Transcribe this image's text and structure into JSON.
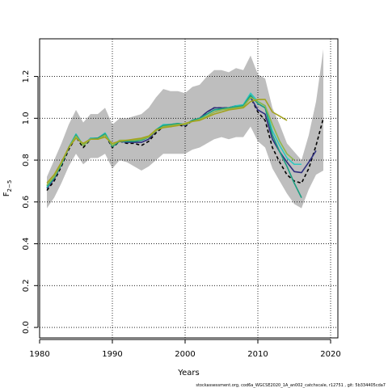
{
  "chart_data": {
    "type": "line",
    "xlabel": "Years",
    "ylabel_main": "F",
    "ylabel_sub": "2−5",
    "xlim": [
      1980,
      2021
    ],
    "ylim": [
      -0.05,
      1.38
    ],
    "xticks": [
      1980,
      1990,
      2000,
      2010,
      2020
    ],
    "yticks": [
      0.0,
      0.2,
      0.4,
      0.6,
      0.8,
      1.0,
      1.2
    ],
    "ytick_labels": [
      "0.0",
      "0.2",
      "0.4",
      "0.6",
      "0.8",
      "1.0",
      "1.2"
    ],
    "grid": true,
    "grid_style": "dotted",
    "band": {
      "color": "#bebebe",
      "x": [
        1981,
        1982,
        1983,
        1984,
        1985,
        1986,
        1987,
        1988,
        1989,
        1990,
        1991,
        1992,
        1993,
        1994,
        1995,
        1996,
        1997,
        1998,
        1999,
        2000,
        2001,
        2002,
        2003,
        2004,
        2005,
        2006,
        2007,
        2008,
        2009,
        2010,
        2011,
        2012,
        2013,
        2014,
        2015,
        2016,
        2017,
        2018,
        2019
      ],
      "upper": [
        0.72,
        0.8,
        0.88,
        0.97,
        1.04,
        0.98,
        1.02,
        1.02,
        1.05,
        0.97,
        1.0,
        1.0,
        1.01,
        1.02,
        1.05,
        1.1,
        1.14,
        1.13,
        1.13,
        1.12,
        1.15,
        1.16,
        1.2,
        1.23,
        1.23,
        1.22,
        1.24,
        1.23,
        1.3,
        1.21,
        1.19,
        1.05,
        0.97,
        0.88,
        0.84,
        0.8,
        0.92,
        1.08,
        1.33
      ],
      "lower": [
        0.57,
        0.62,
        0.69,
        0.77,
        0.83,
        0.78,
        0.81,
        0.81,
        0.83,
        0.76,
        0.8,
        0.79,
        0.77,
        0.75,
        0.77,
        0.8,
        0.83,
        0.83,
        0.83,
        0.83,
        0.85,
        0.86,
        0.88,
        0.9,
        0.91,
        0.9,
        0.91,
        0.91,
        0.96,
        0.89,
        0.86,
        0.76,
        0.7,
        0.64,
        0.59,
        0.57,
        0.66,
        0.73,
        0.75
      ]
    },
    "series": [
      {
        "color": "#000000",
        "dashed": true,
        "width": 1.6,
        "x": [
          1981,
          1982,
          1983,
          1984,
          1985,
          1986,
          1987,
          1988,
          1989,
          1990,
          1991,
          1992,
          1993,
          1994,
          1995,
          1996,
          1997,
          1998,
          1999,
          2000,
          2001,
          2002,
          2003,
          2004,
          2005,
          2006,
          2007,
          2008,
          2009,
          2010,
          2011,
          2012,
          2013,
          2014,
          2015,
          2016,
          2017,
          2018,
          2019
        ],
        "y": [
          0.655,
          0.7,
          0.77,
          0.85,
          0.91,
          0.86,
          0.9,
          0.9,
          0.92,
          0.86,
          0.89,
          0.88,
          0.88,
          0.87,
          0.89,
          0.93,
          0.96,
          0.96,
          0.97,
          0.96,
          0.99,
          1.0,
          1.03,
          1.05,
          1.05,
          1.05,
          1.06,
          1.06,
          1.1,
          1.03,
          0.99,
          0.86,
          0.79,
          0.73,
          0.7,
          0.69,
          0.76,
          0.87,
          1.0
        ]
      },
      {
        "color": "#2e2e7e",
        "dashed": false,
        "width": 1.6,
        "x": [
          1981,
          1982,
          1983,
          1984,
          1985,
          1986,
          1987,
          1988,
          1989,
          1990,
          1991,
          1992,
          1993,
          1994,
          1995,
          1996,
          1997,
          1998,
          1999,
          2000,
          2001,
          2002,
          2003,
          2004,
          2005,
          2006,
          2007,
          2008,
          2009,
          2010,
          2011,
          2012,
          2013,
          2014,
          2015,
          2016,
          2017,
          2018
        ],
        "y": [
          0.665,
          0.71,
          0.78,
          0.86,
          0.92,
          0.87,
          0.905,
          0.905,
          0.925,
          0.865,
          0.89,
          0.885,
          0.885,
          0.885,
          0.9,
          0.94,
          0.965,
          0.965,
          0.975,
          0.965,
          0.99,
          1.0,
          1.03,
          1.05,
          1.05,
          1.05,
          1.06,
          1.06,
          1.1,
          1.04,
          1.02,
          0.9,
          0.84,
          0.79,
          0.745,
          0.74,
          0.79,
          0.845
        ]
      },
      {
        "color": "#2ec8c0",
        "dashed": false,
        "width": 1.6,
        "x": [
          1981,
          1982,
          1983,
          1984,
          1985,
          1986,
          1987,
          1988,
          1989,
          1990,
          1991,
          1992,
          1993,
          1994,
          1995,
          1996,
          1997,
          1998,
          1999,
          2000,
          2001,
          2002,
          2003,
          2004,
          2005,
          2006,
          2007,
          2008,
          2009,
          2010,
          2011,
          2012,
          2013,
          2014,
          2015,
          2016
        ],
        "y": [
          0.67,
          0.715,
          0.78,
          0.86,
          0.925,
          0.87,
          0.905,
          0.905,
          0.93,
          0.87,
          0.89,
          0.89,
          0.895,
          0.895,
          0.91,
          0.945,
          0.97,
          0.97,
          0.975,
          0.97,
          0.99,
          1.0,
          1.02,
          1.04,
          1.045,
          1.05,
          1.06,
          1.065,
          1.12,
          1.08,
          1.06,
          0.94,
          0.87,
          0.81,
          0.78,
          0.78
        ]
      },
      {
        "color": "#1a9e80",
        "dashed": false,
        "width": 1.6,
        "x": [
          1981,
          1982,
          1983,
          1984,
          1985,
          1986,
          1987,
          1988,
          1989,
          1990,
          1991,
          1992,
          1993,
          1994,
          1995,
          1996,
          1997,
          1998,
          1999,
          2000,
          2001,
          2002,
          2003,
          2004,
          2005,
          2006,
          2007,
          2008,
          2009,
          2010,
          2011,
          2012,
          2013,
          2014,
          2015,
          2016
        ],
        "y": [
          0.675,
          0.715,
          0.78,
          0.86,
          0.92,
          0.87,
          0.9,
          0.905,
          0.925,
          0.865,
          0.89,
          0.89,
          0.89,
          0.895,
          0.91,
          0.945,
          0.965,
          0.97,
          0.975,
          0.97,
          0.99,
          1.0,
          1.02,
          1.04,
          1.045,
          1.05,
          1.055,
          1.06,
          1.11,
          1.07,
          1.05,
          0.92,
          0.84,
          0.77,
          0.69,
          0.62
        ]
      },
      {
        "color": "#8db84a",
        "dashed": false,
        "width": 1.6,
        "x": [
          1981,
          1982,
          1983,
          1984,
          1985,
          1986,
          1987,
          1988,
          1989,
          1990,
          1991,
          1992,
          1993,
          1994,
          1995,
          1996,
          1997,
          1998,
          1999,
          2000,
          2001,
          2002,
          2003,
          2004,
          2005,
          2006,
          2007,
          2008,
          2009,
          2010,
          2011,
          2012,
          2013,
          2014,
          2015
        ],
        "y": [
          0.68,
          0.72,
          0.785,
          0.86,
          0.915,
          0.87,
          0.9,
          0.9,
          0.92,
          0.87,
          0.895,
          0.895,
          0.895,
          0.9,
          0.91,
          0.94,
          0.96,
          0.965,
          0.97,
          0.97,
          0.985,
          0.995,
          1.01,
          1.03,
          1.04,
          1.045,
          1.05,
          1.055,
          1.1,
          1.08,
          1.06,
          0.97,
          0.89,
          0.83,
          0.8
        ]
      },
      {
        "color": "#a3a31f",
        "dashed": false,
        "width": 1.6,
        "x": [
          1981,
          1982,
          1983,
          1984,
          1985,
          1986,
          1987,
          1988,
          1989,
          1990,
          1991,
          1992,
          1993,
          1994,
          1995,
          1996,
          1997,
          1998,
          1999,
          2000,
          2001,
          2002,
          2003,
          2004,
          2005,
          2006,
          2007,
          2008,
          2009,
          2010,
          2011,
          2012,
          2013,
          2014
        ],
        "y": [
          0.69,
          0.73,
          0.79,
          0.86,
          0.905,
          0.88,
          0.9,
          0.9,
          0.91,
          0.88,
          0.89,
          0.895,
          0.9,
          0.905,
          0.915,
          0.945,
          0.955,
          0.96,
          0.965,
          0.975,
          0.985,
          0.99,
          1.005,
          1.02,
          1.03,
          1.04,
          1.045,
          1.05,
          1.08,
          1.09,
          1.09,
          1.03,
          1.01,
          0.99
        ]
      }
    ]
  },
  "footnote": "stockassessment.org, cod6a_WGCSE2020_1A_an002_catchscale, r12751 , git: 5b334405cda7"
}
